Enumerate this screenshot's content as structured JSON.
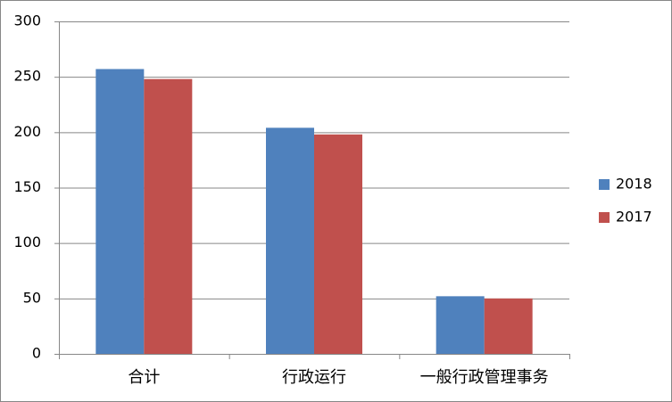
{
  "chart_data": {
    "type": "bar",
    "categories": [
      "合计",
      "行政运行",
      "一般行政管理事务"
    ],
    "series": [
      {
        "name": "2018",
        "color": "#4f81bd",
        "values": [
          257,
          204,
          52
        ]
      },
      {
        "name": "2017",
        "color": "#c0504d",
        "values": [
          248,
          198,
          50
        ]
      }
    ],
    "ylim": [
      0,
      300
    ],
    "yticks": [
      0,
      50,
      100,
      150,
      200,
      250,
      300
    ],
    "grid": true,
    "legend": "right"
  }
}
